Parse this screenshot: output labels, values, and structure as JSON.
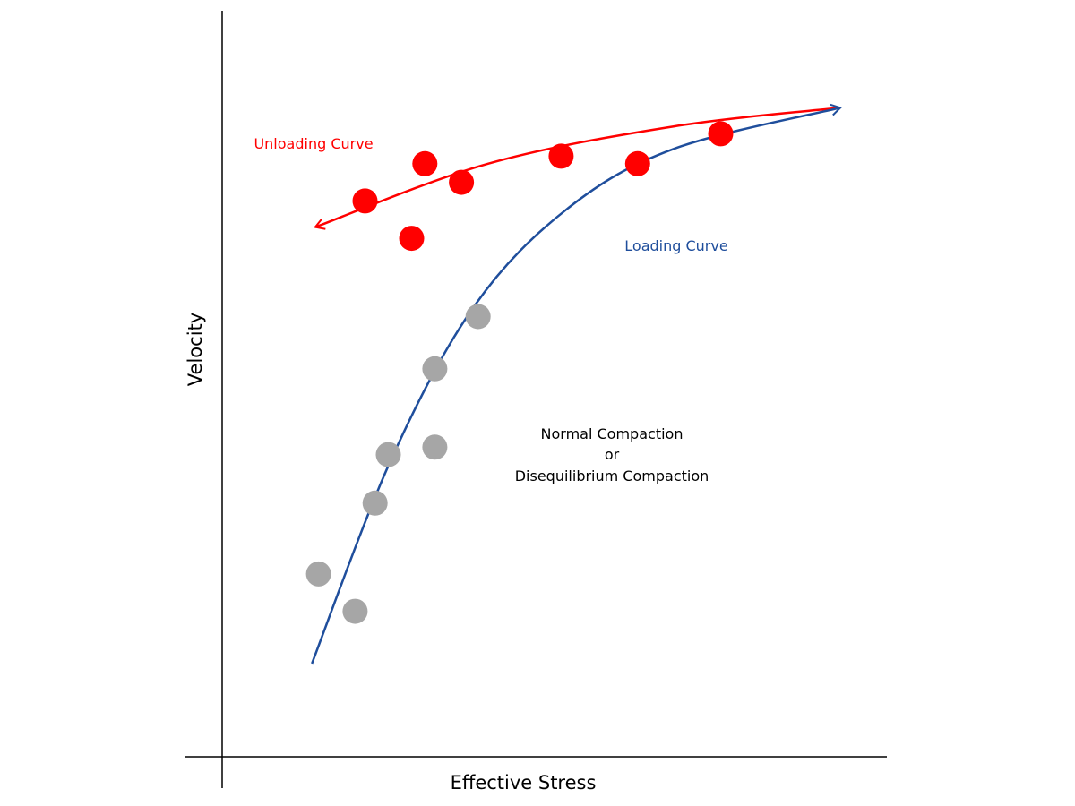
{
  "chart_data": {
    "type": "scatter",
    "xlabel": "Effective Stress",
    "ylabel": "Velocity",
    "xlim": [
      0,
      100
    ],
    "ylim": [
      0,
      100
    ],
    "grid": false,
    "legend": "none",
    "series": [
      {
        "name": "Unloading Curve",
        "color": "#ff0000",
        "marker": "circle",
        "points": [
          {
            "x": 21.5,
            "y": 74.5
          },
          {
            "x": 28.5,
            "y": 69.5
          },
          {
            "x": 30.5,
            "y": 79.5
          },
          {
            "x": 36.0,
            "y": 77.0
          },
          {
            "x": 51.0,
            "y": 80.5
          },
          {
            "x": 62.5,
            "y": 79.5
          },
          {
            "x": 75.0,
            "y": 83.5
          }
        ]
      },
      {
        "name": "Loading Curve",
        "color": "#a6a6a6",
        "marker": "circle",
        "points": [
          {
            "x": 14.5,
            "y": 24.5
          },
          {
            "x": 20.0,
            "y": 19.5
          },
          {
            "x": 23.0,
            "y": 34.0
          },
          {
            "x": 25.0,
            "y": 40.5
          },
          {
            "x": 32.0,
            "y": 52.0
          },
          {
            "x": 32.0,
            "y": 41.5
          },
          {
            "x": 38.5,
            "y": 59.0
          }
        ]
      }
    ],
    "curves": [
      {
        "name": "Unloading Curve",
        "color": "#ff0000",
        "arrow_end": "start",
        "points": [
          [
            14.0,
            71.0
          ],
          [
            40.0,
            79.5
          ],
          [
            68.0,
            84.5
          ],
          [
            93.0,
            87.0
          ]
        ]
      },
      {
        "name": "Loading Curve",
        "color": "#1f4e9c",
        "arrow_end": "end",
        "points": [
          [
            13.5,
            12.5
          ],
          [
            25.5,
            40.0
          ],
          [
            38.0,
            60.5
          ],
          [
            52.0,
            73.5
          ],
          [
            68.0,
            81.5
          ],
          [
            93.0,
            87.0
          ]
        ]
      }
    ],
    "annotations": [
      {
        "lines": [
          "Normal Compaction",
          "or",
          "Disequilibrium Compaction"
        ]
      }
    ]
  }
}
